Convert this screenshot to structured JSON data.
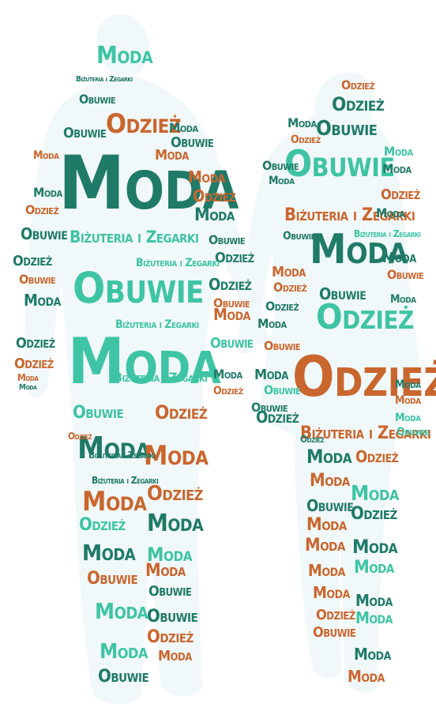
{
  "colors": {
    "dark_teal": "#1f7a68",
    "mint": "#3ec4a4",
    "rust": "#c9662e",
    "silhouette_fill": "#f1f8f9"
  },
  "words": {
    "moda": "Moda",
    "obuwie": "Obuwie",
    "odziez": "Odzież",
    "bizuteria": "Biżuteria i Zegarki"
  }
}
